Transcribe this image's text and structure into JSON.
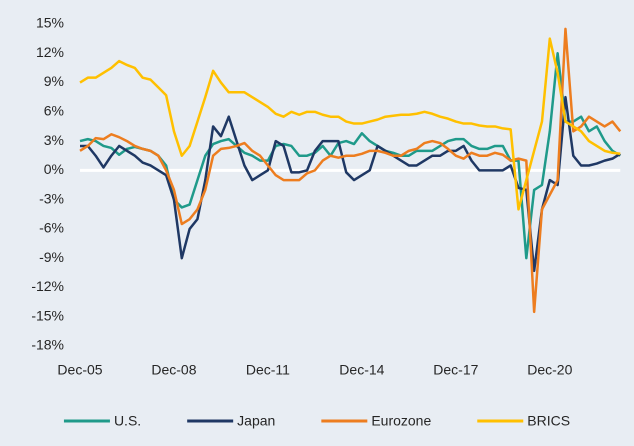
{
  "chart_data": {
    "type": "line",
    "categories": [
      "Dec-05",
      null,
      null,
      null,
      null,
      null,
      null,
      null,
      null,
      null,
      null,
      null,
      "Dec-08",
      null,
      null,
      null,
      null,
      null,
      null,
      null,
      null,
      null,
      null,
      null,
      "Dec-11",
      null,
      null,
      null,
      null,
      null,
      null,
      null,
      null,
      null,
      null,
      null,
      "Dec-14",
      null,
      null,
      null,
      null,
      null,
      null,
      null,
      null,
      null,
      null,
      null,
      "Dec-17",
      null,
      null,
      null,
      null,
      null,
      null,
      null,
      null,
      null,
      null,
      null,
      "Dec-20",
      null,
      null,
      null,
      null,
      null,
      null,
      null,
      null,
      null
    ],
    "series": [
      {
        "name": "U.S.",
        "color": "#1f9a8a",
        "values": [
          3,
          3.2,
          3,
          2.5,
          2.3,
          1.6,
          2.2,
          2.4,
          2.2,
          2,
          1.5,
          0.5,
          -3,
          -3.8,
          -3.5,
          -1,
          1.5,
          2.7,
          3,
          3.2,
          2.5,
          1.8,
          1.5,
          1,
          1,
          2.5,
          2.7,
          2.5,
          1.5,
          1.5,
          1.8,
          2.5,
          1.5,
          2.8,
          3,
          2.7,
          3.8,
          3,
          2.5,
          2,
          1.8,
          1.5,
          1.5,
          2,
          2,
          2,
          2.5,
          3,
          3.2,
          3.2,
          2.5,
          2.2,
          2.2,
          2.5,
          2.5,
          1,
          1,
          -9,
          -2,
          -1.5,
          4,
          12,
          5,
          5,
          5.5,
          4,
          4.5,
          3,
          2,
          1.5
        ]
      },
      {
        "name": "Japan",
        "color": "#1f3864",
        "values": [
          2.5,
          2.5,
          1.5,
          0.3,
          1.5,
          2.5,
          2,
          1.5,
          0.8,
          0.5,
          0,
          -0.5,
          -3,
          -9,
          -6,
          -5,
          -1,
          4.5,
          3.5,
          5.5,
          3,
          0.5,
          -1,
          -0.5,
          0,
          3,
          2.5,
          -0.2,
          -0.2,
          0,
          2,
          3,
          3,
          3,
          -0.2,
          -1,
          -0.5,
          0,
          2.5,
          2,
          1.5,
          1,
          0.5,
          0.5,
          1,
          1.5,
          1.5,
          2,
          2,
          2.5,
          1,
          0,
          0,
          0,
          0,
          0.5,
          -1.8,
          -2,
          -10.3,
          -4,
          -1,
          -1.5,
          7.5,
          1.5,
          0.5,
          0.5,
          0.7,
          1,
          1.2,
          1.7
        ]
      },
      {
        "name": "Eurozone",
        "color": "#ed7d1f",
        "values": [
          2,
          2.5,
          3.3,
          3.2,
          3.7,
          3.4,
          3,
          2.5,
          2.2,
          2,
          1.5,
          0,
          -2,
          -5.5,
          -5,
          -4,
          -2,
          1.5,
          2.2,
          2.3,
          2.5,
          2.8,
          2,
          1.5,
          0.5,
          -0.5,
          -1,
          -1,
          -1,
          -0.3,
          0,
          1,
          1.5,
          1.3,
          1.5,
          1.5,
          1.7,
          2,
          2,
          1.8,
          1.5,
          1.5,
          2,
          2.2,
          2.8,
          3,
          2.8,
          2.2,
          1.5,
          1.2,
          1.8,
          1.5,
          1.5,
          1.8,
          1.6,
          1,
          1.2,
          1,
          -14.5,
          -4,
          -2.5,
          -1,
          14.5,
          4,
          4.5,
          5.5,
          5,
          4.5,
          5,
          4
        ]
      },
      {
        "name": "BRICS",
        "color": "#ffc000",
        "values": [
          9,
          9.5,
          9.5,
          10,
          10.5,
          11.2,
          10.8,
          10.5,
          9.5,
          9.3,
          8.5,
          7.7,
          4,
          1.5,
          2.5,
          5,
          7.5,
          10.2,
          9,
          8,
          8,
          8,
          7.5,
          7,
          6.5,
          5.8,
          5.5,
          6,
          5.7,
          6,
          6,
          5.7,
          5.5,
          5.5,
          5,
          4.8,
          4.8,
          5,
          5.2,
          5.5,
          5.6,
          5.7,
          5.7,
          5.8,
          6,
          5.8,
          5.5,
          5.3,
          5,
          4.8,
          4.8,
          4.6,
          4.5,
          4.5,
          4.3,
          4.2,
          -4,
          -1,
          2,
          5,
          13.5,
          10,
          5,
          4.5,
          4,
          3,
          2.5,
          2,
          1.8,
          1.7
        ]
      }
    ],
    "ylim": [
      -18,
      15
    ],
    "yticks": [
      {
        "value": 15,
        "label": "15%"
      },
      {
        "value": 12,
        "label": "12%"
      },
      {
        "value": 9,
        "label": "9%"
      },
      {
        "value": 6,
        "label": "6%"
      },
      {
        "value": 3,
        "label": "3%"
      },
      {
        "value": 0,
        "label": "0%"
      },
      {
        "value": -3,
        "label": "-3%"
      },
      {
        "value": -6,
        "label": "-6%"
      },
      {
        "value": -9,
        "label": "-9%"
      },
      {
        "value": -12,
        "label": "-12%"
      },
      {
        "value": -15,
        "label": "-15%"
      },
      {
        "value": -18,
        "label": "-18%"
      }
    ],
    "zero_line": true,
    "legend": "bottom"
  }
}
